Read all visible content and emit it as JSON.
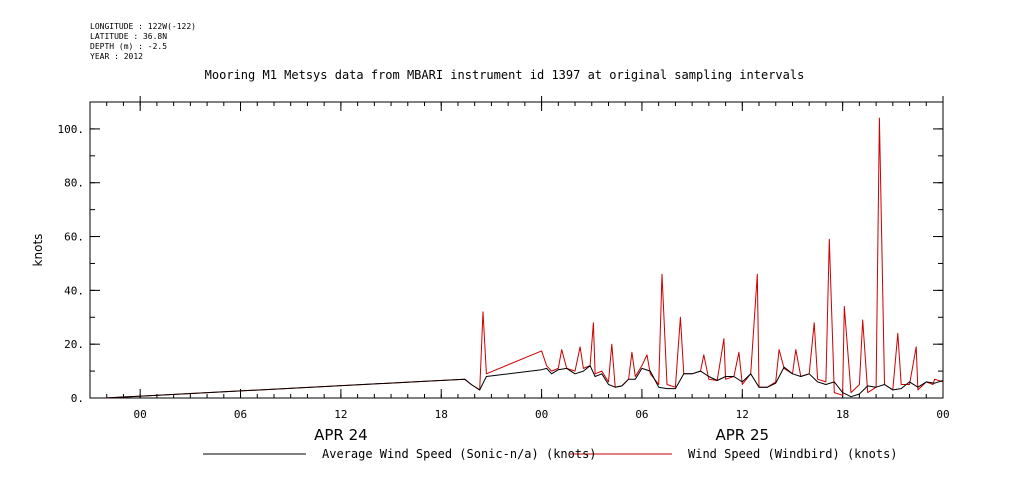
{
  "header": {
    "longitude": "LONGITUDE : 122W(-122)",
    "latitude": "LATITUDE : 36.8N",
    "depth": "DEPTH (m) : -2.5",
    "year": "YEAR : 2012"
  },
  "chart_data": {
    "type": "line",
    "title": "Mooring M1 Metsys data from MBARI instrument id 1397 at original sampling intervals",
    "ylabel": "knots",
    "xlabel": "",
    "x_unit": "hours since 2012-04-24 00:00",
    "xlim": [
      -3,
      48
    ],
    "ylim": [
      0,
      110
    ],
    "x_ticks": [
      {
        "x": 0,
        "label": "00"
      },
      {
        "x": 6,
        "label": "06"
      },
      {
        "x": 12,
        "label": "12"
      },
      {
        "x": 18,
        "label": "18"
      },
      {
        "x": 24,
        "label": "00"
      },
      {
        "x": 30,
        "label": "06"
      },
      {
        "x": 36,
        "label": "12"
      },
      {
        "x": 42,
        "label": "18"
      },
      {
        "x": 48,
        "label": "00"
      }
    ],
    "date_labels": [
      {
        "x": 12,
        "label": "APR 24"
      },
      {
        "x": 36,
        "label": "APR 25"
      }
    ],
    "y_ticks": [
      {
        "y": 0,
        "label": "0."
      },
      {
        "y": 20,
        "label": "20."
      },
      {
        "y": 40,
        "label": "40."
      },
      {
        "y": 60,
        "label": "60."
      },
      {
        "y": 80,
        "label": "80."
      },
      {
        "y": 100,
        "label": "100."
      }
    ],
    "grid": false,
    "legend": "bottom",
    "series": [
      {
        "name": "Average Wind Speed (Sonic-n/a) (knots)",
        "color": "#000000",
        "x": [
          -2.1,
          19.4,
          19.8,
          20.3,
          20.7,
          24.0,
          24.3,
          24.6,
          25.0,
          25.5,
          26.0,
          26.5,
          26.9,
          27.2,
          27.6,
          28.0,
          28.4,
          28.8,
          29.2,
          29.6,
          30.0,
          30.5,
          31.0,
          31.5,
          32.0,
          32.5,
          33.0,
          33.5,
          34.0,
          34.5,
          35.0,
          35.5,
          36.0,
          36.5,
          37.0,
          37.5,
          38.0,
          38.5,
          39.0,
          39.5,
          40.0,
          40.5,
          41.0,
          41.5,
          42.0,
          42.5,
          43.0,
          43.5,
          44.0,
          44.5,
          45.0,
          45.5,
          46.0,
          46.5,
          47.0,
          47.5,
          48.0
        ],
        "y": [
          0,
          7,
          5,
          3,
          8,
          10.5,
          11,
          9,
          10.5,
          11,
          9,
          10,
          12,
          8,
          9,
          5,
          4,
          4.5,
          7,
          7,
          11,
          10,
          4,
          3.5,
          3.5,
          9,
          9,
          10,
          8,
          6.5,
          8,
          8,
          6,
          9,
          4,
          4,
          5.5,
          11.5,
          9,
          8,
          9,
          6,
          5,
          6,
          2,
          0.5,
          1.5,
          4.5,
          4,
          5,
          3,
          3.5,
          6,
          4,
          6,
          5.5,
          6.5
        ]
      },
      {
        "name": "Wind Speed (Windbird) (knots)",
        "color": "#cc0000",
        "x": [
          -2.1,
          19.4,
          19.8,
          20.3,
          20.5,
          20.7,
          24.0,
          24.3,
          24.6,
          25.0,
          25.2,
          25.5,
          26.0,
          26.3,
          26.5,
          26.9,
          27.1,
          27.2,
          27.6,
          28.0,
          28.2,
          28.4,
          28.8,
          29.2,
          29.4,
          29.6,
          30.0,
          30.3,
          30.5,
          31.0,
          31.2,
          31.5,
          32.0,
          32.3,
          32.5,
          33.0,
          33.5,
          33.7,
          34.0,
          34.5,
          34.9,
          35.0,
          35.5,
          35.8,
          36.0,
          36.5,
          36.9,
          37.0,
          37.5,
          38.0,
          38.2,
          38.5,
          39.0,
          39.2,
          39.5,
          40.0,
          40.3,
          40.5,
          41.0,
          41.2,
          41.5,
          42.0,
          42.1,
          42.5,
          43.0,
          43.2,
          43.5,
          44.0,
          44.2,
          44.5,
          45.0,
          45.3,
          45.5,
          46.0,
          46.4,
          46.5,
          47.0,
          47.4,
          47.5,
          48.0
        ],
        "y": [
          0,
          7,
          5,
          3,
          32,
          9,
          17.5,
          12,
          10,
          11,
          18,
          11,
          10,
          19,
          11,
          12,
          28,
          9,
          10,
          6,
          20,
          4,
          4.5,
          7,
          17,
          8,
          12,
          16,
          9,
          5,
          46,
          5,
          4,
          30,
          9,
          9,
          10,
          16,
          7,
          6.5,
          22,
          7,
          8,
          17,
          5,
          9,
          46,
          4,
          4,
          6,
          18,
          11,
          9,
          18,
          8,
          9,
          28,
          7,
          6,
          59,
          2,
          1,
          34,
          2,
          5,
          29,
          2,
          4,
          104,
          5,
          3,
          24,
          5,
          5,
          19,
          3,
          6,
          5,
          7,
          6
        ]
      }
    ]
  }
}
